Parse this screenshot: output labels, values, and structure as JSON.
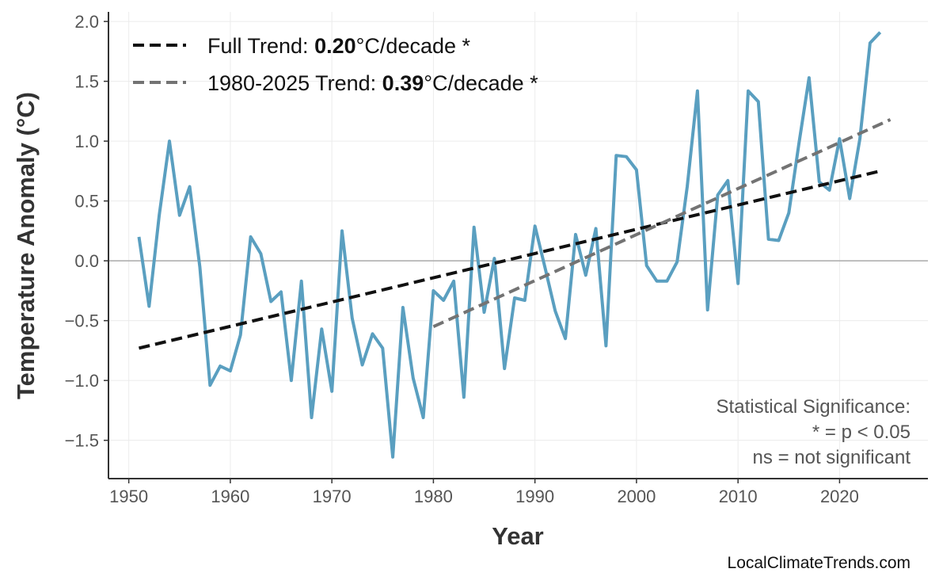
{
  "chart_data": {
    "type": "line",
    "title": "",
    "xlabel": "Year",
    "ylabel": "Temperature Anomaly (°C)",
    "xlim": [
      1948,
      2028.7
    ],
    "ylim": [
      -1.82,
      2.08
    ],
    "xticks": [
      1950,
      1960,
      1970,
      1980,
      1990,
      2000,
      2010,
      2020
    ],
    "yticks": [
      2.0,
      1.5,
      1.0,
      0.5,
      0.0,
      -0.5,
      -1.0,
      -1.5
    ],
    "ytick_labels": [
      "2.0",
      "1.5",
      "1.0",
      "0.5",
      "0.0",
      "−0.5",
      "−1.0",
      "−1.5"
    ],
    "grid": true,
    "zero_line": true,
    "series_color": "#5a9fc0",
    "x": [
      1951,
      1952,
      1953,
      1954,
      1955,
      1956,
      1957,
      1958,
      1959,
      1960,
      1961,
      1962,
      1963,
      1964,
      1965,
      1966,
      1967,
      1968,
      1969,
      1970,
      1971,
      1972,
      1973,
      1974,
      1975,
      1976,
      1977,
      1978,
      1979,
      1980,
      1981,
      1982,
      1983,
      1984,
      1985,
      1986,
      1987,
      1988,
      1989,
      1990,
      1991,
      1992,
      1993,
      1994,
      1995,
      1996,
      1997,
      1998,
      1999,
      2000,
      2001,
      2002,
      2003,
      2004,
      2005,
      2006,
      2007,
      2008,
      2009,
      2010,
      2011,
      2012,
      2013,
      2014,
      2015,
      2016,
      2017,
      2018,
      2019,
      2020,
      2021,
      2022,
      2023,
      2024
    ],
    "values": [
      0.2,
      -0.38,
      0.38,
      1.0,
      0.38,
      0.62,
      -0.05,
      -1.04,
      -0.88,
      -0.92,
      -0.62,
      0.2,
      0.06,
      -0.34,
      -0.26,
      -1.0,
      -0.17,
      -1.31,
      -0.57,
      -1.09,
      0.25,
      -0.48,
      -0.87,
      -0.61,
      -0.73,
      -1.64,
      -0.39,
      -0.98,
      -1.31,
      -0.25,
      -0.33,
      -0.17,
      -1.14,
      0.28,
      -0.43,
      0.02,
      -0.9,
      -0.31,
      -0.33,
      0.29,
      -0.06,
      -0.42,
      -0.65,
      0.22,
      -0.12,
      0.27,
      -0.71,
      0.88,
      0.87,
      0.76,
      -0.04,
      -0.17,
      -0.17,
      -0.01,
      0.62,
      1.42,
      -0.41,
      0.55,
      0.67,
      -0.19,
      1.42,
      1.33,
      0.18,
      0.17,
      0.4,
      0.98,
      1.53,
      0.66,
      0.59,
      1.02,
      0.52,
      1.02,
      1.82,
      1.91
    ],
    "trends": [
      {
        "name": "Full Trend",
        "label_prefix": "Full Trend: ",
        "rate": "0.20",
        "label_suffix": "°C/decade *",
        "x": [
          1951,
          2024
        ],
        "y": [
          -0.73,
          0.75
        ],
        "color": "#111111"
      },
      {
        "name": "1980-2025 Trend",
        "label_prefix": "1980-2025 Trend: ",
        "rate": "0.39",
        "label_suffix": "°C/decade *",
        "x": [
          1980,
          2025
        ],
        "y": [
          -0.55,
          1.18
        ],
        "color": "#737373"
      }
    ],
    "legend_position": "top-left",
    "annotation": [
      "Statistical Significance:",
      "* = p < 0.05",
      "ns = not significant"
    ]
  },
  "credit": "LocalClimateTrends.com"
}
